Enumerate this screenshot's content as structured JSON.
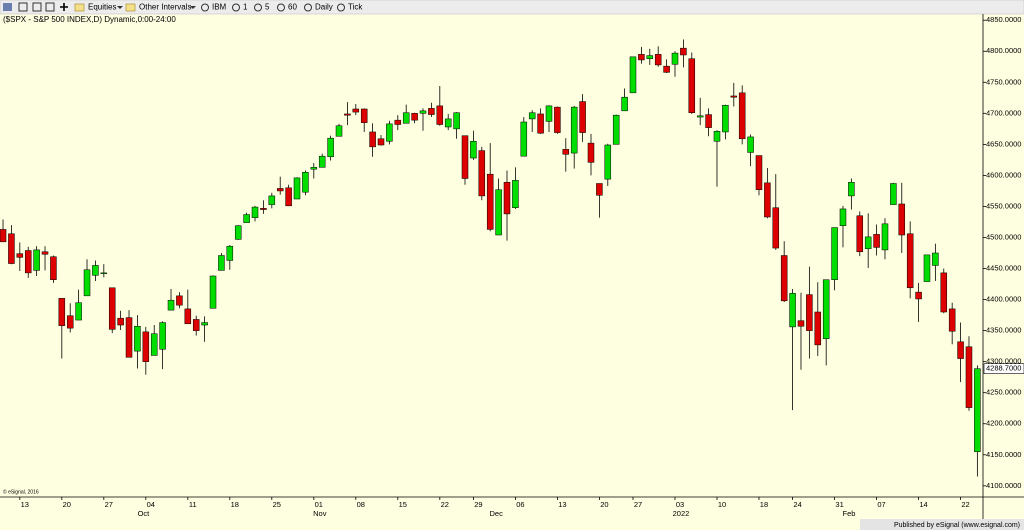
{
  "toolbar": {
    "items": [
      "Equities",
      "Other Intervals",
      "IBM",
      "1",
      "5",
      "60",
      "Daily",
      "Tick"
    ]
  },
  "copyright": "© eSignal, 2016",
  "footer": "Published by eSignal (www.esignal.com)",
  "chart_data": {
    "type": "candlestick",
    "title": "($SPX - S&P 500 INDEX,D) Dynamic,0:00-24:00",
    "up_color": "#00dd00",
    "down_color": "#dd0000",
    "open": [
      4513,
      4506,
      4474,
      4479,
      4447,
      4477,
      4469,
      4402,
      4374,
      4367,
      4406,
      4439,
      4443,
      4419,
      4370,
      4371,
      4317,
      4348,
      4310,
      4320,
      4383,
      4406,
      4385,
      4368,
      4359,
      4386,
      4447,
      4463,
      4497,
      4524,
      4532,
      4547,
      4553,
      4579,
      4580,
      4562,
      4573,
      4610,
      4613,
      4630,
      4663,
      4699,
      4707,
      4707,
      4670,
      4659,
      4655,
      4689,
      4684,
      4700,
      4700,
      4708,
      4712,
      4678,
      4675,
      4664,
      4628,
      4640,
      4602,
      4504,
      4589,
      4548,
      4631,
      4691,
      4699,
      4687,
      4710,
      4642,
      4636,
      4719,
      4652,
      4587,
      4594,
      4650,
      4704,
      4733,
      4795,
      4788,
      4795,
      4776,
      4779,
      4805,
      4788,
      4694,
      4698,
      4655,
      4670,
      4728,
      4733,
      4637,
      4632,
      4588,
      4548,
      4471,
      4356,
      4366,
      4408,
      4380,
      4337,
      4432,
      4519,
      4567,
      4535,
      4482,
      4505,
      4480,
      4553,
      4554,
      4506,
      4412,
      4429,
      4455,
      4443,
      4385,
      4332,
      4324,
      4155
    ],
    "high": [
      4529,
      4520,
      4492,
      4485,
      4486,
      4486,
      4471,
      4402,
      4394,
      4416,
      4465,
      4463,
      4457,
      4419,
      4382,
      4383,
      4375,
      4356,
      4359,
      4365,
      4417,
      4412,
      4416,
      4374,
      4373,
      4439,
      4475,
      4488,
      4520,
      4540,
      4551,
      4560,
      4572,
      4598,
      4585,
      4597,
      4608,
      4620,
      4635,
      4664,
      4683,
      4718,
      4715,
      4708,
      4684,
      4665,
      4688,
      4697,
      4714,
      4701,
      4708,
      4717,
      4744,
      4699,
      4702,
      4664,
      4672,
      4646,
      4652,
      4595,
      4608,
      4613,
      4694,
      4705,
      4708,
      4713,
      4711,
      4660,
      4712,
      4731,
      4667,
      4587,
      4651,
      4698,
      4740,
      4791,
      4807,
      4804,
      4808,
      4787,
      4800,
      4819,
      4798,
      4725,
      4708,
      4673,
      4714,
      4749,
      4745,
      4666,
      4632,
      4612,
      4602,
      4494,
      4417,
      4411,
      4453,
      4428,
      4432,
      4516,
      4551,
      4595,
      4542,
      4539,
      4521,
      4531,
      4588,
      4588,
      4526,
      4427,
      4472,
      4490,
      4450,
      4395,
      4363,
      4341,
      4294
    ],
    "low": [
      4493,
      4457,
      4446,
      4435,
      4438,
      4447,
      4427,
      4305,
      4347,
      4367,
      4406,
      4430,
      4436,
      4346,
      4351,
      4307,
      4289,
      4279,
      4310,
      4288,
      4383,
      4386,
      4361,
      4342,
      4332,
      4386,
      4447,
      4448,
      4496,
      4524,
      4526,
      4538,
      4547,
      4569,
      4551,
      4562,
      4568,
      4595,
      4613,
      4624,
      4663,
      4681,
      4697,
      4670,
      4630,
      4648,
      4650,
      4673,
      4684,
      4684,
      4672,
      4694,
      4680,
      4673,
      4659,
      4585,
      4625,
      4560,
      4510,
      4504,
      4495,
      4546,
      4631,
      4670,
      4667,
      4670,
      4667,
      4606,
      4611,
      4654,
      4600,
      4532,
      4583,
      4650,
      4704,
      4733,
      4780,
      4778,
      4775,
      4765,
      4759,
      4774,
      4699,
      4681,
      4663,
      4582,
      4658,
      4711,
      4650,
      4615,
      4568,
      4531,
      4480,
      4396,
      4222,
      4287,
      4305,
      4309,
      4294,
      4415,
      4484,
      4545,
      4470,
      4451,
      4471,
      4465,
      4553,
      4475,
      4402,
      4364,
      4429,
      4430,
      4378,
      4328,
      4267,
      4221,
      4115
    ],
    "close": [
      4493,
      4458,
      4468,
      4443,
      4480,
      4473,
      4432,
      4358,
      4354,
      4395,
      4448,
      4455,
      4443,
      4352,
      4359,
      4307,
      4357,
      4300,
      4345,
      4363,
      4399,
      4391,
      4361,
      4350,
      4363,
      4438,
      4471,
      4486,
      4519,
      4537,
      4549,
      4545,
      4567,
      4575,
      4551,
      4596,
      4605,
      4613,
      4631,
      4660,
      4680,
      4697,
      4702,
      4685,
      4646,
      4649,
      4683,
      4682,
      4701,
      4689,
      4704,
      4698,
      4682,
      4691,
      4701,
      4595,
      4655,
      4567,
      4513,
      4577,
      4538,
      4592,
      4686,
      4701,
      4668,
      4712,
      4669,
      4634,
      4710,
      4669,
      4621,
      4568,
      4649,
      4697,
      4726,
      4791,
      4786,
      4793,
      4778,
      4766,
      4797,
      4794,
      4701,
      4696,
      4677,
      4671,
      4713,
      4726,
      4659,
      4662,
      4577,
      4533,
      4483,
      4398,
      4410,
      4357,
      4350,
      4327,
      4432,
      4516,
      4546,
      4589,
      4477,
      4501,
      4484,
      4522,
      4587,
      4504,
      4419,
      4401,
      4472,
      4475,
      4380,
      4349,
      4305,
      4226,
      4288.7
    ],
    "last_price": {
      "value": 4288.7,
      "label": "4288.7000"
    },
    "xlim": [
      -0.36,
      116.67
    ],
    "xticks": [
      {
        "value": 2,
        "label": "13"
      },
      {
        "value": 7,
        "label": "20"
      },
      {
        "value": 12,
        "label": "27"
      },
      {
        "value": 17,
        "label": "04"
      },
      {
        "value": 22,
        "label": "11"
      },
      {
        "value": 27,
        "label": "18"
      },
      {
        "value": 32,
        "label": "25"
      },
      {
        "value": 37,
        "label": "01"
      },
      {
        "value": 42,
        "label": "08"
      },
      {
        "value": 47,
        "label": "15"
      },
      {
        "value": 52,
        "label": "22"
      },
      {
        "value": 56,
        "label": "29"
      },
      {
        "value": 61,
        "label": "06"
      },
      {
        "value": 66,
        "label": "13"
      },
      {
        "value": 71,
        "label": "20"
      },
      {
        "value": 75,
        "label": "27"
      },
      {
        "value": 80,
        "label": "03"
      },
      {
        "value": 85,
        "label": "10"
      },
      {
        "value": 90,
        "label": "18"
      },
      {
        "value": 94,
        "label": "24"
      },
      {
        "value": 99,
        "label": "31"
      },
      {
        "value": 104,
        "label": "07"
      },
      {
        "value": 109,
        "label": "14"
      },
      {
        "value": 114,
        "label": "22"
      }
    ],
    "month_ticks": [
      {
        "value": 16,
        "label": "Oct"
      },
      {
        "value": 37,
        "label": "Nov"
      },
      {
        "value": 58,
        "label": "Dec"
      },
      {
        "value": 80,
        "label": "2022"
      },
      {
        "value": 100,
        "label": "Feb"
      }
    ],
    "ylim": [
      4082,
      4860
    ],
    "yticks": [
      {
        "value": 4100,
        "label": "4100.0000"
      },
      {
        "value": 4150,
        "label": "4150.0000"
      },
      {
        "value": 4200,
        "label": "4200.0000"
      },
      {
        "value": 4250,
        "label": "4250.0000"
      },
      {
        "value": 4300,
        "label": "4300.0000"
      },
      {
        "value": 4350,
        "label": "4350.0000"
      },
      {
        "value": 4400,
        "label": "4400.0000"
      },
      {
        "value": 4450,
        "label": "4450.0000"
      },
      {
        "value": 4500,
        "label": "4500.0000"
      },
      {
        "value": 4550,
        "label": "4550.0000"
      },
      {
        "value": 4600,
        "label": "4600.0000"
      },
      {
        "value": 4650,
        "label": "4650.0000"
      },
      {
        "value": 4700,
        "label": "4700.0000"
      },
      {
        "value": 4750,
        "label": "4750.0000"
      },
      {
        "value": 4800,
        "label": "4800.0000"
      },
      {
        "value": 4850,
        "label": "4850.0000"
      }
    ]
  }
}
